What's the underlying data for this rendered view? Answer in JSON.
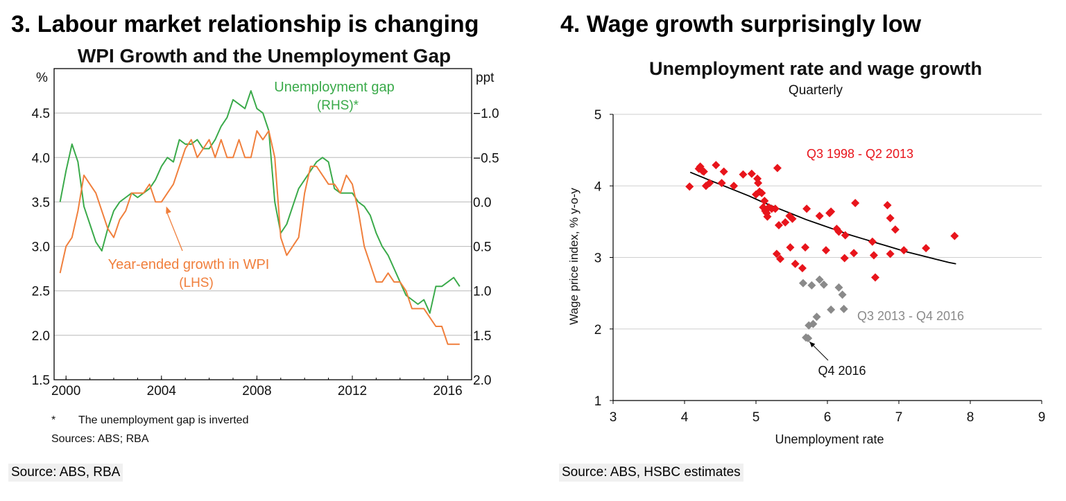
{
  "left_panel": {
    "heading": "3. Labour market relationship is changing",
    "source": "Source: ABS, RBA"
  },
  "right_panel": {
    "heading": "4. Wage growth surprisingly low",
    "source": "Source: ABS, HSBC estimates"
  },
  "chart_data": [
    {
      "type": "line",
      "title": "WPI Growth and the Unemployment Gap",
      "left_axis_unit": "%",
      "right_axis_unit": "ppt",
      "left_ylim": [
        1.5,
        5.0
      ],
      "left_ticks": [
        "1.5",
        "2.0",
        "2.5",
        "3.0",
        "3.5",
        "4.0",
        "4.5"
      ],
      "right_ylim": [
        2.0,
        -1.5
      ],
      "right_ticks": [
        "2.0",
        "1.5",
        "1.0",
        "0.5",
        "0.0",
        "-0.5",
        "-1.0"
      ],
      "xlim": [
        1999.5,
        2017.0
      ],
      "x_ticks": [
        "2000",
        "2004",
        "2008",
        "2012",
        "2016"
      ],
      "grid": "horizontal",
      "series": [
        {
          "name": "Unemployment gap",
          "label_lines": [
            "Unemployment gap",
            "(RHS)*"
          ],
          "axis": "right",
          "color": "#3aaa4a",
          "x": [
            1999.75,
            2000.0,
            2000.25,
            2000.5,
            2000.75,
            2001.0,
            2001.25,
            2001.5,
            2001.75,
            2002.0,
            2002.25,
            2002.5,
            2002.75,
            2003.0,
            2003.25,
            2003.5,
            2003.75,
            2004.0,
            2004.25,
            2004.5,
            2004.75,
            2005.0,
            2005.25,
            2005.5,
            2005.75,
            2006.0,
            2006.25,
            2006.5,
            2006.75,
            2007.0,
            2007.25,
            2007.5,
            2007.75,
            2008.0,
            2008.25,
            2008.5,
            2008.75,
            2009.0,
            2009.25,
            2009.5,
            2009.75,
            2010.0,
            2010.25,
            2010.5,
            2010.75,
            2011.0,
            2011.25,
            2011.5,
            2011.75,
            2012.0,
            2012.25,
            2012.5,
            2012.75,
            2013.0,
            2013.25,
            2013.5,
            2013.75,
            2014.0,
            2014.25,
            2014.5,
            2014.75,
            2015.0,
            2015.25,
            2015.5,
            2015.75,
            2016.0,
            2016.25,
            2016.5
          ],
          "values": [
            0.0,
            -0.35,
            -0.65,
            -0.45,
            0.05,
            0.25,
            0.45,
            0.55,
            0.3,
            0.1,
            0.0,
            -0.05,
            -0.1,
            -0.05,
            -0.1,
            -0.15,
            -0.25,
            -0.4,
            -0.5,
            -0.45,
            -0.7,
            -0.65,
            -0.65,
            -0.7,
            -0.6,
            -0.6,
            -0.7,
            -0.85,
            -0.95,
            -1.15,
            -1.1,
            -1.05,
            -1.25,
            -1.05,
            -1.0,
            -0.8,
            0.0,
            0.35,
            0.25,
            0.05,
            -0.15,
            -0.25,
            -0.35,
            -0.45,
            -0.5,
            -0.45,
            -0.15,
            -0.1,
            -0.1,
            -0.1,
            0.0,
            0.05,
            0.15,
            0.35,
            0.5,
            0.6,
            0.75,
            0.9,
            1.05,
            1.1,
            1.15,
            1.1,
            1.25,
            0.95,
            0.95,
            0.9,
            0.85,
            0.95
          ]
        },
        {
          "name": "Year-ended growth in WPI",
          "label_lines": [
            "Year-ended growth in WPI",
            "(LHS)"
          ],
          "axis": "left",
          "color": "#f07f3c",
          "x": [
            1999.75,
            2000.0,
            2000.25,
            2000.5,
            2000.75,
            2001.0,
            2001.25,
            2001.5,
            2001.75,
            2002.0,
            2002.25,
            2002.5,
            2002.75,
            2003.0,
            2003.25,
            2003.5,
            2003.75,
            2004.0,
            2004.25,
            2004.5,
            2004.75,
            2005.0,
            2005.25,
            2005.5,
            2005.75,
            2006.0,
            2006.25,
            2006.5,
            2006.75,
            2007.0,
            2007.25,
            2007.5,
            2007.75,
            2008.0,
            2008.25,
            2008.5,
            2008.75,
            2009.0,
            2009.25,
            2009.5,
            2009.75,
            2010.0,
            2010.25,
            2010.5,
            2010.75,
            2011.0,
            2011.25,
            2011.5,
            2011.75,
            2012.0,
            2012.25,
            2012.5,
            2012.75,
            2013.0,
            2013.25,
            2013.5,
            2013.75,
            2014.0,
            2014.25,
            2014.5,
            2014.75,
            2015.0,
            2015.25,
            2015.5,
            2015.75,
            2016.0,
            2016.25,
            2016.5
          ],
          "values": [
            2.7,
            3.0,
            3.1,
            3.4,
            3.8,
            3.7,
            3.6,
            3.4,
            3.2,
            3.1,
            3.3,
            3.4,
            3.6,
            3.6,
            3.6,
            3.7,
            3.5,
            3.5,
            3.6,
            3.7,
            3.9,
            4.1,
            4.2,
            4.0,
            4.1,
            4.2,
            4.0,
            4.2,
            4.0,
            4.0,
            4.2,
            4.0,
            4.0,
            4.3,
            4.2,
            4.3,
            4.0,
            3.1,
            2.9,
            3.0,
            3.1,
            3.6,
            3.9,
            3.9,
            3.8,
            3.7,
            3.7,
            3.6,
            3.8,
            3.7,
            3.4,
            3.0,
            2.8,
            2.6,
            2.6,
            2.7,
            2.6,
            2.6,
            2.5,
            2.3,
            2.3,
            2.3,
            2.2,
            2.1,
            2.1,
            1.9,
            1.9,
            1.9
          ]
        }
      ],
      "annotation_arrow_target": [
        2004.2,
        3.45
      ],
      "footnote": {
        "marker": "*",
        "text": "The unemployment gap is inverted",
        "sources": "Sources: ABS; RBA"
      }
    },
    {
      "type": "scatter",
      "title": "Unemployment rate and wage growth",
      "subtitle": "Quarterly",
      "xlabel": "Unemployment rate",
      "ylabel": "Wage price index, % y-o-y",
      "xlim": [
        3,
        9
      ],
      "ylim": [
        1,
        5
      ],
      "x_ticks": [
        "3",
        "4",
        "5",
        "6",
        "7",
        "8",
        "9"
      ],
      "y_ticks": [
        "1",
        "2",
        "3",
        "4",
        "5"
      ],
      "grid": "horizontal",
      "series": [
        {
          "name": "Q3 1998 - Q2 2013",
          "color": "#e8141b",
          "points": [
            [
              4.07,
              3.99
            ],
            [
              4.2,
              4.24
            ],
            [
              4.22,
              4.27
            ],
            [
              4.25,
              4.21
            ],
            [
              4.27,
              4.2
            ],
            [
              4.3,
              4.0
            ],
            [
              4.35,
              4.04
            ],
            [
              4.44,
              4.29
            ],
            [
              4.52,
              4.04
            ],
            [
              4.55,
              4.2
            ],
            [
              4.69,
              4.0
            ],
            [
              4.82,
              4.16
            ],
            [
              4.94,
              4.17
            ],
            [
              5.0,
              3.88
            ],
            [
              5.02,
              4.1
            ],
            [
              5.03,
              4.04
            ],
            [
              5.05,
              3.92
            ],
            [
              5.08,
              3.9
            ],
            [
              5.1,
              3.7
            ],
            [
              5.12,
              3.79
            ],
            [
              5.13,
              3.65
            ],
            [
              5.15,
              3.62
            ],
            [
              5.16,
              3.57
            ],
            [
              5.18,
              3.7
            ],
            [
              5.22,
              3.68
            ],
            [
              5.27,
              3.68
            ],
            [
              5.29,
              3.05
            ],
            [
              5.3,
              4.25
            ],
            [
              5.32,
              3.45
            ],
            [
              5.34,
              2.98
            ],
            [
              5.41,
              3.49
            ],
            [
              5.47,
              3.58
            ],
            [
              5.48,
              3.14
            ],
            [
              5.51,
              3.54
            ],
            [
              5.55,
              2.91
            ],
            [
              5.65,
              2.85
            ],
            [
              5.69,
              3.14
            ],
            [
              5.71,
              3.68
            ],
            [
              5.89,
              3.58
            ],
            [
              5.98,
              3.1
            ],
            [
              6.03,
              3.62
            ],
            [
              6.05,
              3.64
            ],
            [
              6.13,
              3.4
            ],
            [
              6.16,
              3.36
            ],
            [
              6.25,
              3.31
            ],
            [
              6.24,
              2.99
            ],
            [
              6.37,
              3.06
            ],
            [
              6.39,
              3.76
            ],
            [
              6.63,
              3.22
            ],
            [
              6.65,
              3.03
            ],
            [
              6.67,
              2.72
            ],
            [
              6.84,
              3.73
            ],
            [
              6.88,
              3.55
            ],
            [
              6.88,
              3.05
            ],
            [
              6.95,
              3.39
            ],
            [
              7.07,
              3.1
            ],
            [
              7.38,
              3.13
            ],
            [
              7.78,
              3.3
            ]
          ]
        },
        {
          "name": "Q3 2013 - Q4 2016",
          "color": "#8a8a8a",
          "points": [
            [
              5.66,
              2.64
            ],
            [
              5.78,
              2.61
            ],
            [
              5.89,
              2.69
            ],
            [
              5.95,
              2.62
            ],
            [
              6.16,
              2.58
            ],
            [
              6.21,
              2.48
            ],
            [
              6.23,
              2.28
            ],
            [
              6.05,
              2.27
            ],
            [
              5.85,
              2.17
            ],
            [
              5.8,
              2.07
            ],
            [
              5.74,
              2.05
            ],
            [
              5.7,
              1.88
            ],
            [
              5.73,
              1.87
            ]
          ]
        }
      ],
      "trendline": {
        "color": "#000000",
        "x": [
          4.08,
          4.3,
          4.5,
          4.7,
          4.9,
          5.1,
          5.3,
          5.5,
          5.7,
          5.9,
          6.1,
          6.3,
          6.5,
          6.7,
          6.9,
          7.1,
          7.3,
          7.5,
          7.7,
          7.8
        ],
        "values": [
          4.19,
          4.1,
          4.02,
          3.94,
          3.86,
          3.77,
          3.69,
          3.61,
          3.53,
          3.46,
          3.39,
          3.32,
          3.26,
          3.2,
          3.14,
          3.08,
          3.03,
          2.98,
          2.93,
          2.91
        ]
      },
      "annotation": {
        "text": "Q4 2016",
        "arrow_target": [
          5.72,
          1.88
        ]
      }
    }
  ]
}
